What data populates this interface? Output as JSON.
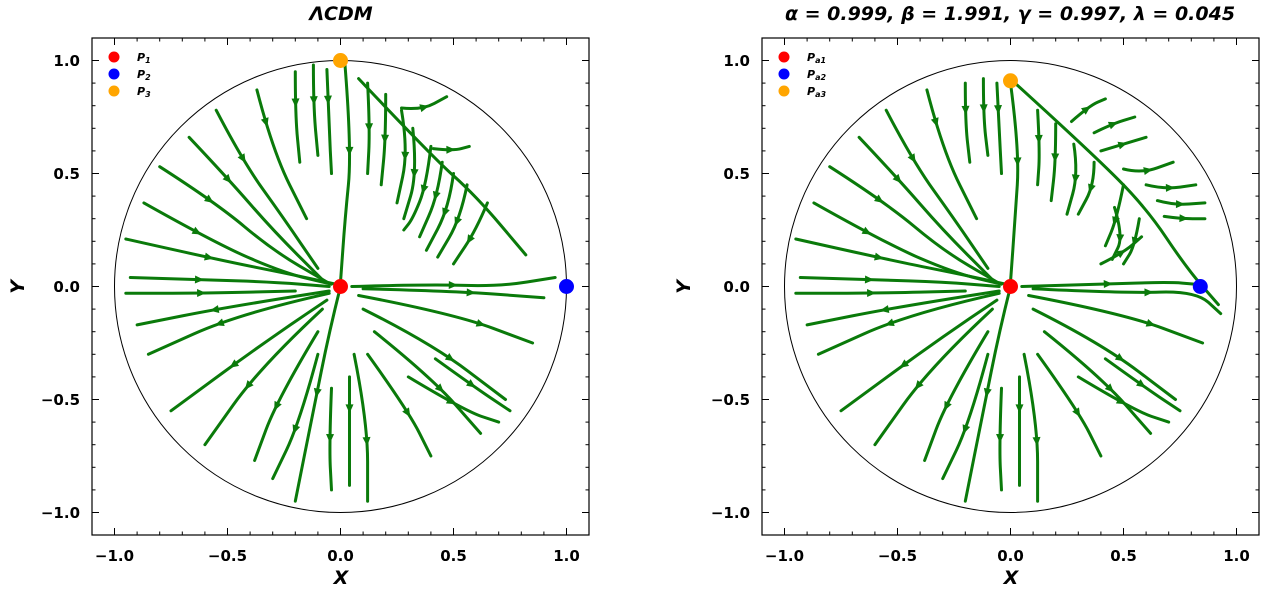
{
  "chart_data": [
    {
      "type": "streamplot",
      "title": "ΛCDM",
      "xlabel": "X",
      "ylabel": "Y",
      "xlim": [
        -1.1,
        1.1
      ],
      "ylim": [
        -1.1,
        1.1
      ],
      "xticks": [
        "−1.0",
        "−0.5",
        "0.0",
        "0.5",
        "1.0"
      ],
      "yticks": [
        "1.0",
        "0.5",
        "0.0",
        "−0.5",
        "−1.0"
      ],
      "boundary": "unit circle",
      "stream_color": "#0a7a0a",
      "legend_position": "top-left",
      "points": [
        {
          "name": "P",
          "sub": "1",
          "x": 0.0,
          "y": 0.0,
          "color": "#ff0000"
        },
        {
          "name": "P",
          "sub": "2",
          "x": 1.0,
          "y": 0.0,
          "color": "#0000ff"
        },
        {
          "name": "P",
          "sub": "3",
          "x": 0.0,
          "y": 1.0,
          "color": "#ffa500"
        }
      ]
    },
    {
      "type": "streamplot",
      "title": "α = 0.999, β = 1.991, γ = 0.997, λ = 0.045",
      "xlabel": "X",
      "ylabel": "Y",
      "xlim": [
        -1.1,
        1.1
      ],
      "ylim": [
        -1.1,
        1.1
      ],
      "xticks": [
        "−1.0",
        "−0.5",
        "0.0",
        "0.5",
        "1.0"
      ],
      "yticks": [
        "1.0",
        "0.5",
        "0.0",
        "−0.5",
        "−1.0"
      ],
      "boundary": "unit circle",
      "stream_color": "#0a7a0a",
      "legend_position": "top-left",
      "points": [
        {
          "name": "P",
          "sub": "a1",
          "x": 0.0,
          "y": 0.0,
          "color": "#ff0000"
        },
        {
          "name": "P",
          "sub": "a2",
          "x": 0.84,
          "y": 0.0,
          "color": "#0000ff"
        },
        {
          "name": "P",
          "sub": "a3",
          "x": 0.0,
          "y": 0.91,
          "color": "#ffa500"
        }
      ]
    }
  ]
}
